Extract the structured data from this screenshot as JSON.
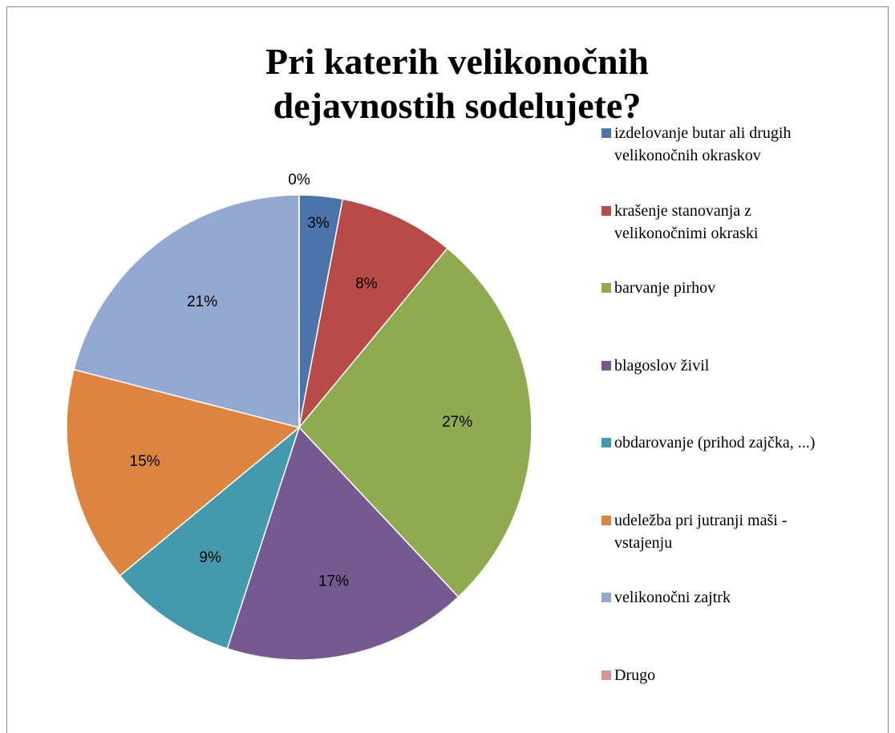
{
  "chart_data": {
    "type": "pie",
    "title": "Pri katerih velikonočnih dejavnostih sodelujete?",
    "categories": [
      "izdelovanje butar ali drugih velikonočnih okraskov",
      "krašenje stanovanja z velikonočnimi okraski",
      "barvanje pirhov",
      "blagoslov živil",
      "obdarovanje (prihod zajčka, ...)",
      "udeležba pri jutranji maši - vstajenju",
      "velikonočni zajtrk",
      "Drugo"
    ],
    "values": [
      3,
      8,
      27,
      17,
      9,
      15,
      21,
      0
    ],
    "value_labels": [
      "3%",
      "8%",
      "27%",
      "17%",
      "9%",
      "15%",
      "21%",
      "0%"
    ],
    "colors": [
      "#4a74aa",
      "#b84a47",
      "#8eab4f",
      "#745a90",
      "#4399ae",
      "#dd8540",
      "#93a9d1",
      "#d69593"
    ],
    "legend": "right"
  }
}
